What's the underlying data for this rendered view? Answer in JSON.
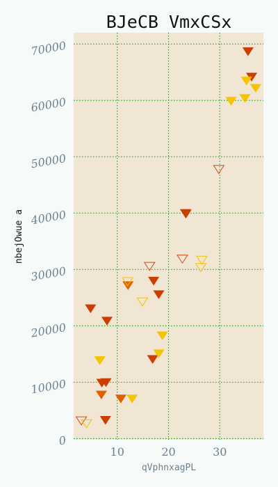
{
  "chart_data": {
    "type": "scatter",
    "title": "BJeCB VmxCSx",
    "xlabel": "qVphnxagPL",
    "ylabel": "nbejOwue a",
    "xlim": [
      1.5,
      38.5
    ],
    "ylim": [
      -200,
      72000
    ],
    "xticks": [
      10,
      20,
      30
    ],
    "yticks": [
      0,
      10000,
      20000,
      30000,
      40000,
      50000,
      60000,
      70000
    ],
    "grid": true,
    "colors": {
      "background": "#f6fbfa",
      "plot_bg": "#f0e6d3",
      "grid": "#1a8c1a"
    },
    "series": [
      {
        "marker": "triangle-down-filled",
        "color": "#cc3d00",
        "points": [
          [
            4.8,
            23200
          ],
          [
            8.0,
            21000
          ],
          [
            7.0,
            10000
          ],
          [
            7.8,
            10100
          ],
          [
            7.7,
            3400
          ],
          [
            17.1,
            28100
          ],
          [
            18.1,
            25700
          ],
          [
            16.9,
            14200
          ],
          [
            23.3,
            40100
          ],
          [
            23.4,
            40000
          ],
          [
            35.5,
            68800
          ],
          [
            36.2,
            64300
          ]
        ]
      },
      {
        "marker": "triangle-down-filled",
        "color": "#e06000",
        "points": [
          [
            12.1,
            27300
          ],
          [
            6.9,
            7900
          ],
          [
            10.7,
            7200
          ]
        ]
      },
      {
        "marker": "triangle-down-filled",
        "color": "#f5c400",
        "points": [
          [
            6.6,
            14000
          ],
          [
            18.8,
            18400
          ],
          [
            18.1,
            15200
          ],
          [
            12.9,
            7200
          ],
          [
            32.2,
            60000
          ],
          [
            34.9,
            60500
          ],
          [
            35.2,
            63600
          ],
          [
            37.0,
            62300
          ]
        ]
      },
      {
        "marker": "triangle-down-open",
        "color": "#d04a1a",
        "points": [
          [
            3.0,
            3300
          ],
          [
            16.3,
            30700
          ],
          [
            22.7,
            32000
          ],
          [
            29.8,
            47900
          ]
        ]
      },
      {
        "marker": "triangle-down-open",
        "color": "#f0c200",
        "points": [
          [
            4.0,
            2800
          ],
          [
            12.0,
            28000
          ],
          [
            14.9,
            24400
          ],
          [
            26.5,
            31800
          ],
          [
            26.3,
            30500
          ]
        ]
      }
    ]
  }
}
